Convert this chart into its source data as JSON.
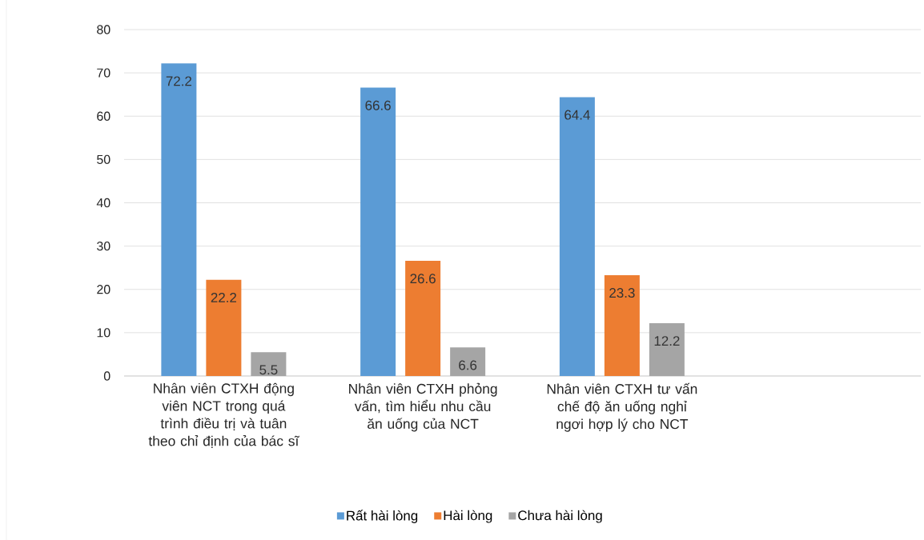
{
  "chart_data": {
    "type": "bar",
    "categories": [
      "Nhân viên CTXH động viên NCT trong quá trình điều trị và tuân theo chỉ định của bác sĩ",
      "Nhân viên CTXH phỏng vấn, tìm hiểu nhu cầu ăn uống của NCT",
      "Nhân viên CTXH tư vấn chế độ ăn uống nghỉ ngơi hợp lý cho NCT",
      null
    ],
    "series": [
      {
        "name": "Rất hài lòng",
        "color": "#5b9bd5",
        "values": [
          72.2,
          66.6,
          64.4,
          null
        ]
      },
      {
        "name": "Hài lòng",
        "color": "#ed7d31",
        "values": [
          22.2,
          26.6,
          23.3,
          null
        ]
      },
      {
        "name": "Chưa hài lòng",
        "color": "#a5a5a5",
        "values": [
          5.5,
          6.6,
          12.2,
          null
        ]
      }
    ],
    "ylim": [
      0,
      80
    ],
    "yticks": [
      0,
      10,
      20,
      30,
      40,
      50,
      60,
      70,
      80
    ],
    "grid": "y",
    "legend": "bottom",
    "data_labels": true
  }
}
